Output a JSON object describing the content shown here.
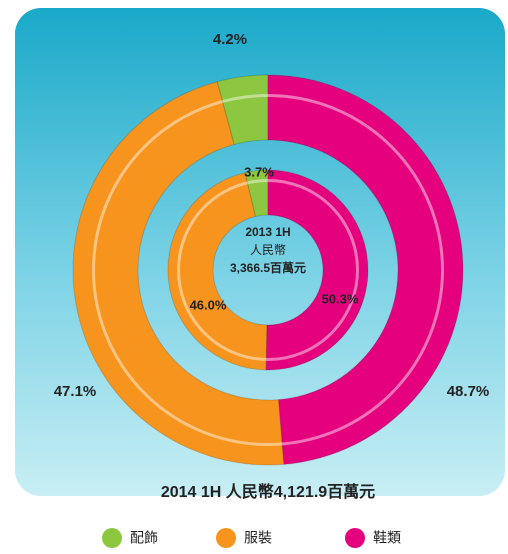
{
  "chart_data": {
    "type": "donut",
    "categories": [
      "配飾",
      "服裝",
      "鞋類"
    ],
    "colors": [
      "#8dc63f",
      "#f7941d",
      "#e5007e"
    ],
    "series": [
      {
        "name": "2014 1H",
        "caption": "人民幣4,121.9百萬元",
        "values": [
          4.2,
          47.1,
          48.7
        ],
        "value_labels": [
          "4.2%",
          "47.1%",
          "48.7%"
        ]
      },
      {
        "name": "2013 1H",
        "caption": [
          "人民幣",
          "3,366.5百萬元"
        ],
        "values": [
          3.7,
          46.0,
          50.3
        ],
        "value_labels": [
          "3.7%",
          "46.0%",
          "50.3%"
        ]
      }
    ]
  }
}
